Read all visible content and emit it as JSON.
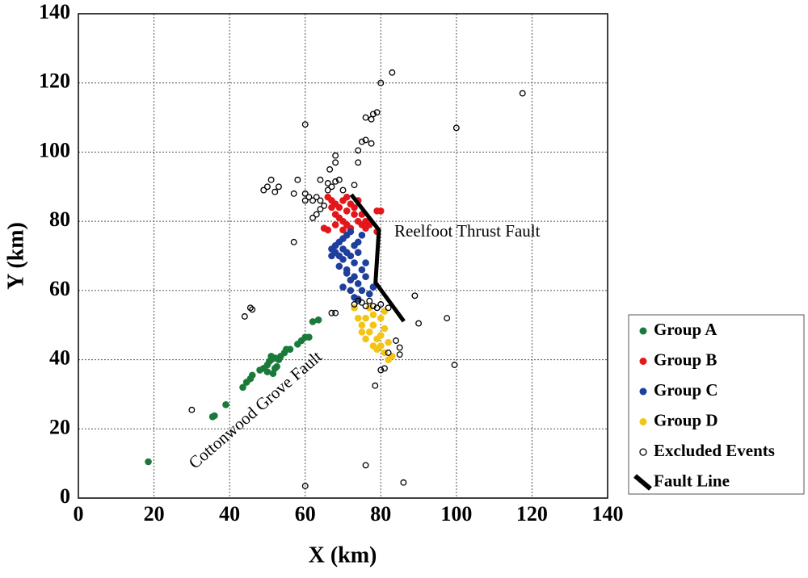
{
  "chart_data": {
    "type": "scatter",
    "xlabel": "X (km)",
    "ylabel": "Y (km)",
    "xlim": [
      0,
      140
    ],
    "ylim": [
      0,
      140
    ],
    "xticks": [
      0,
      20,
      40,
      60,
      80,
      100,
      120,
      140
    ],
    "yticks": [
      0,
      20,
      40,
      60,
      80,
      100,
      120,
      140
    ],
    "grid": true,
    "legend": "right",
    "annotations": [
      "Reelfoot Thrust Fault",
      "Cottonwood Grove Fault"
    ],
    "series": [
      {
        "name": "Group A",
        "color": "#1a7a3a",
        "marker": "filled",
        "x": [
          18.5,
          35.5,
          36,
          39,
          43.5,
          44.5,
          45.5,
          46,
          48,
          49,
          50,
          50.5,
          51,
          51.5,
          52,
          52.5,
          53,
          53.5,
          54.5,
          55,
          56,
          58,
          59,
          60,
          61,
          62,
          63.5,
          51,
          52,
          50
        ],
        "y": [
          10.5,
          23.5,
          23.8,
          27,
          32,
          33.5,
          34.5,
          35.5,
          37,
          37.5,
          38.5,
          39.5,
          40,
          36,
          37.5,
          38,
          40,
          41,
          42,
          43,
          43,
          44.5,
          45.5,
          46.5,
          46.5,
          51,
          51.5,
          41,
          40.5,
          36.5
        ]
      },
      {
        "name": "Group B",
        "color": "#e3171b",
        "marker": "filled",
        "x": [
          66,
          67,
          68,
          69,
          70,
          71,
          72,
          73,
          74,
          75,
          72,
          70,
          68,
          67,
          69,
          71,
          73,
          75,
          76,
          77,
          65,
          66,
          79,
          80,
          79,
          74,
          71,
          68,
          70,
          76
        ],
        "y": [
          87,
          86,
          85,
          84,
          86,
          83,
          85,
          82,
          80,
          79,
          78,
          80,
          82,
          84,
          81,
          79,
          84,
          82,
          80,
          79,
          78,
          77.5,
          83,
          83,
          77,
          86,
          87,
          79,
          77.5,
          78
        ]
      },
      {
        "name": "Group C",
        "color": "#1f3f9c",
        "marker": "filled",
        "x": [
          67,
          68,
          69,
          70,
          71,
          72,
          73,
          74,
          72,
          70,
          68,
          69,
          71,
          73,
          75,
          76,
          74,
          72,
          70,
          75,
          77,
          71,
          73,
          74,
          73,
          76,
          69,
          78,
          72,
          70,
          67,
          75,
          71,
          74
        ],
        "y": [
          72,
          73,
          74,
          75,
          76,
          77,
          73,
          71,
          70,
          69,
          71,
          67,
          65,
          64,
          66,
          68,
          62,
          60,
          61,
          60,
          59,
          66,
          68,
          74,
          58,
          64,
          70,
          61,
          63,
          72,
          70,
          76,
          71,
          57.5
        ]
      },
      {
        "name": "Group D",
        "color": "#f2c417",
        "marker": "filled",
        "x": [
          73,
          74,
          75,
          76,
          77,
          78,
          79,
          80,
          81,
          82,
          83,
          78,
          80,
          81,
          76,
          79,
          77,
          82,
          75,
          80,
          78,
          81
        ],
        "y": [
          55,
          52,
          50,
          52,
          48,
          50,
          46,
          44,
          42,
          40,
          41,
          53,
          52,
          49,
          46,
          43,
          55,
          45,
          48,
          47,
          44,
          54
        ]
      },
      {
        "name": "Excluded Events",
        "color": "#000000",
        "marker": "open",
        "x": [
          83,
          80,
          117.5,
          78,
          79,
          76,
          77.5,
          60,
          100,
          75,
          76,
          77.5,
          74,
          68,
          68,
          74,
          66.5,
          58,
          51,
          64,
          66,
          68,
          69,
          49,
          50,
          52,
          53,
          57,
          60,
          61,
          62,
          63,
          64,
          60,
          66,
          67,
          70,
          73,
          62,
          63,
          64,
          65,
          57,
          45.5,
          46,
          44,
          67,
          68,
          73,
          74,
          75,
          76,
          77,
          78,
          79,
          80,
          82,
          89,
          90,
          97.5,
          84,
          85,
          85,
          82,
          80,
          81,
          99.5,
          78.5,
          30,
          76,
          86,
          60
        ],
        "y": [
          123,
          120,
          117,
          111,
          111.5,
          110,
          109.5,
          108,
          107,
          103,
          103.5,
          102.5,
          100.5,
          99,
          97,
          97,
          95,
          92,
          92,
          92,
          91,
          91.5,
          92,
          89,
          90,
          88.5,
          90,
          88,
          88,
          87,
          86,
          87,
          86,
          86,
          89,
          90,
          89,
          90.5,
          81,
          82,
          83.5,
          84.5,
          74,
          55,
          54.5,
          52.5,
          53.5,
          53.5,
          56,
          57,
          56.5,
          55.5,
          57,
          55.5,
          55,
          56,
          55,
          58.5,
          50.5,
          52,
          45.5,
          43.5,
          41.5,
          42,
          37,
          37.5,
          38.5,
          32.5,
          25.5,
          9.5,
          4.5,
          3.5
        ]
      },
      {
        "name": "Fault Line",
        "color": "#000000",
        "marker": "line",
        "x": [
          72.2,
          79.5,
          78.6,
          86.1
        ],
        "y": [
          87.7,
          77.5,
          62.3,
          51.1
        ]
      }
    ]
  }
}
